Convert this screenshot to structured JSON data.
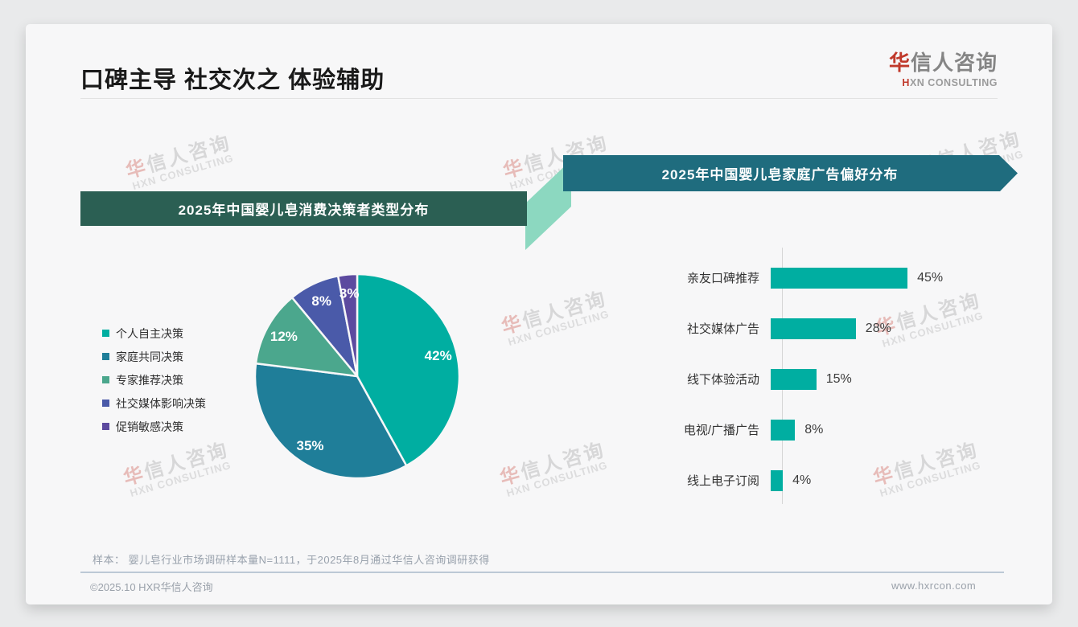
{
  "page": {
    "title": "口碑主导 社交次之 体验辅助",
    "logo": {
      "brand_first": "华",
      "brand_rest": "信人咨询",
      "tagline_first": "H",
      "tagline_rest": "XN CONSULTING"
    },
    "watermark": {
      "cn_first": "华",
      "cn_rest": "信人咨询",
      "en": "HXN CONSULTING"
    },
    "note": "样本： 婴儿皂行业市场调研样本量N=1111，于2025年8月通过华信人咨询调研获得",
    "footer": {
      "copyright": "©2025.10 HXR华信人咨询",
      "website": "www.hxrcon.com"
    }
  },
  "colors": {
    "accent_teal": "#00AEA1",
    "banner_left_bg": "#2B5F53",
    "banner_right_bg": "#1F6C7E",
    "banner_connector": "#8CD8C0",
    "logo_red": "#C0392B"
  },
  "chart_data": [
    {
      "type": "pie",
      "title": "2025年中国婴儿皂消费决策者类型分布",
      "labels": [
        "个人自主决策",
        "家庭共同决策",
        "专家推荐决策",
        "社交媒体影响决策",
        "促销敏感决策"
      ],
      "values": [
        42,
        35,
        12,
        8,
        3
      ],
      "value_labels": [
        "42%",
        "35%",
        "12%",
        "8%",
        "3%"
      ],
      "unit": "%",
      "colors": [
        "#00AEA1",
        "#1F7E99",
        "#4BA78D",
        "#4A5AA9",
        "#5C4A9F"
      ],
      "legend_position": "left",
      "start_angle": "12-o-clock, clockwise"
    },
    {
      "type": "bar",
      "orientation": "horizontal",
      "title": "2025年中国婴儿皂家庭广告偏好分布",
      "categories": [
        "亲友口碑推荐",
        "社交媒体广告",
        "线下体验活动",
        "电视/广播广告",
        "线上电子订阅"
      ],
      "values": [
        45,
        28,
        15,
        8,
        4
      ],
      "value_labels": [
        "45%",
        "28%",
        "15%",
        "8%",
        "4%"
      ],
      "unit": "%",
      "bar_color": "#00AEA1",
      "xlim": [
        0,
        50
      ],
      "grid": false,
      "legend": false
    }
  ]
}
